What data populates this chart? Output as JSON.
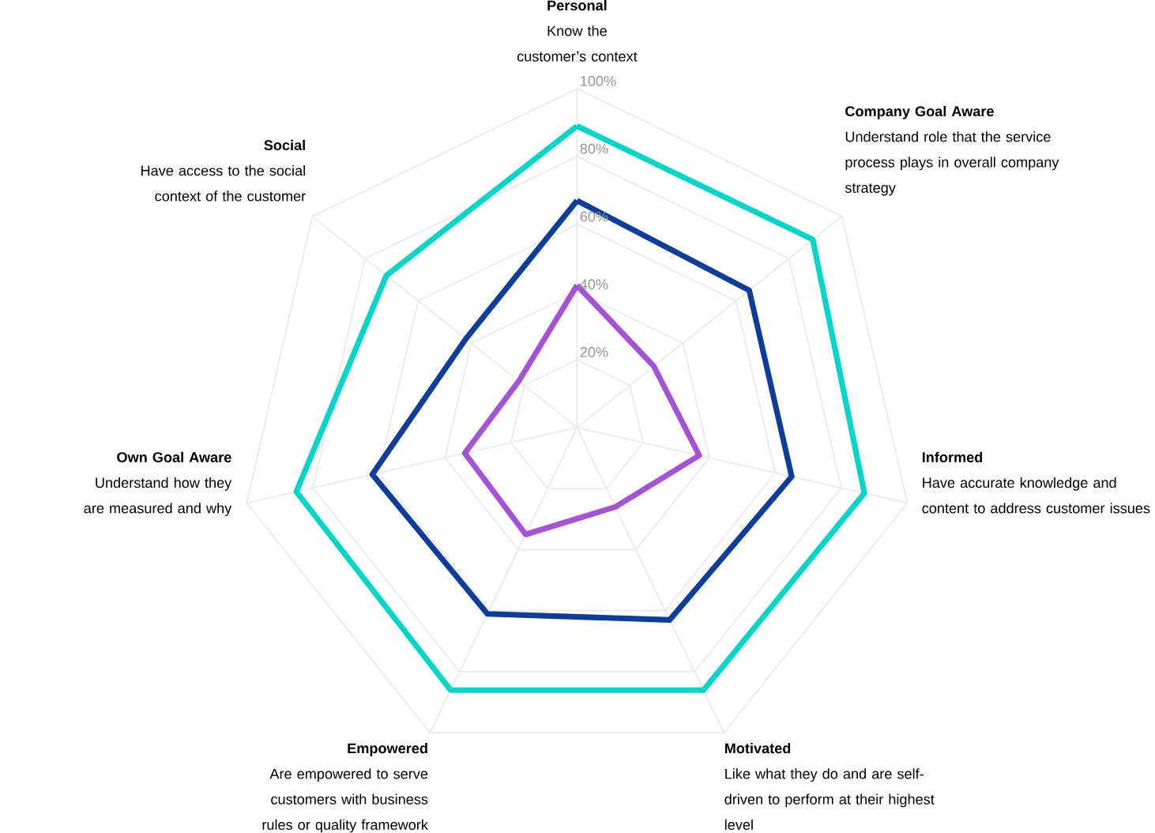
{
  "chart_data": {
    "type": "radar",
    "categories": [
      "Personal",
      "Company Goal Aware",
      "Informed",
      "Motivated",
      "Empowered",
      "Own Goal Aware",
      "Social"
    ],
    "annotations": [
      "Know the customer’s context",
      "Understand role that the service process plays in overall company strategy",
      "Have accurate knowledge and content to address customer issues",
      "Like what they do and are self-driven to perform at their highest level",
      "Are empowered to serve customers with business rules or quality framework",
      "Understand how they are measured and why",
      "Have access to the social context of the customer"
    ],
    "series": [
      {
        "color": "#00d6c9",
        "values": [
          89,
          89,
          87,
          86,
          86,
          85,
          72
        ]
      },
      {
        "color": "#0a3d9e",
        "values": [
          67,
          65,
          65,
          63,
          61,
          62,
          42
        ]
      },
      {
        "color": "#a652d8",
        "values": [
          42,
          29,
          37,
          26,
          35,
          34,
          22
        ]
      }
    ],
    "ylim": [
      0,
      100
    ],
    "yticks": [
      {
        "value": 20,
        "label": "20%"
      },
      {
        "value": 40,
        "label": "40%"
      },
      {
        "value": 60,
        "label": "60%"
      },
      {
        "value": 80,
        "label": "80%"
      },
      {
        "value": 100,
        "label": "100%"
      }
    ],
    "grid": true
  }
}
